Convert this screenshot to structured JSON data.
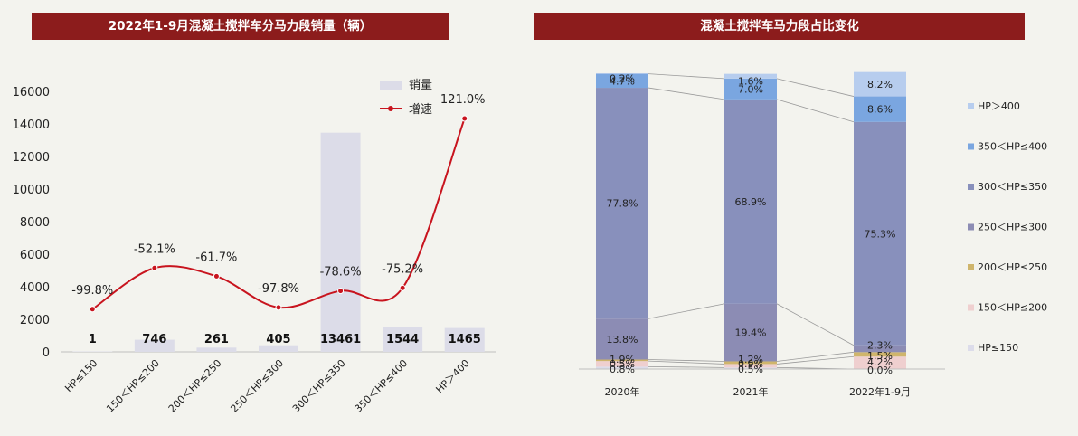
{
  "left_title": "2022年1-9月混凝土搅拌车分马力段销量（辆）",
  "right_title": "混凝土搅拌车马力段占比变化",
  "colors": {
    "banner": "#8c1c1c",
    "bar": "#dcdce8",
    "line": "#c8141e"
  },
  "chart_data": [
    {
      "type": "bar",
      "title": "2022年1-9月混凝土搅拌车分马力段销量（辆）",
      "categories": [
        "HP≤150",
        "150＜HP≤200",
        "200＜HP≤250",
        "250＜HP≤300",
        "300＜HP≤350",
        "350＜HP≤400",
        "HP＞400"
      ],
      "series": [
        {
          "name": "销量",
          "type": "bar",
          "values": [
            1,
            746,
            261,
            405,
            13461,
            1544,
            1465
          ],
          "value_labels": [
            "1",
            "746",
            "261",
            "405",
            "13461",
            "1544",
            "1465"
          ]
        },
        {
          "name": "增速",
          "type": "line",
          "values": [
            -99.8,
            -52.1,
            -61.7,
            -97.8,
            -78.6,
            -75.2,
            121.0
          ],
          "value_labels": [
            "-99.8%",
            "-52.1%",
            "-61.7%",
            "-97.8%",
            "-78.6%",
            "-75.2%",
            "121.0%"
          ]
        }
      ],
      "yticks": [
        "0",
        "2000",
        "4000",
        "6000",
        "8000",
        "10000",
        "12000",
        "14000",
        "16000"
      ],
      "ylim": [
        0,
        16000
      ],
      "legend_position": "top-right"
    },
    {
      "type": "bar",
      "stacked": true,
      "title": "混凝土搅拌车马力段占比变化",
      "categories": [
        "2020年",
        "2021年",
        "2022年1-9月"
      ],
      "series": [
        {
          "name": "HP≤150",
          "values": [
            0.8,
            0.5,
            0.0
          ],
          "labels": [
            "0.8%",
            "0.5%",
            "0.0%"
          ]
        },
        {
          "name": "150＜HP≤200",
          "values": [
            1.9,
            1.2,
            4.2
          ],
          "labels": [
            "1.9%",
            "1.2%",
            "4.2%"
          ]
        },
        {
          "name": "200＜HP≤250",
          "values": [
            0.5,
            0.9,
            1.5
          ],
          "labels": [
            "0.5%",
            "0.9%",
            "1.5%"
          ]
        },
        {
          "name": "250＜HP≤300",
          "values": [
            13.8,
            19.4,
            2.3
          ],
          "labels": [
            "13.8%",
            "19.4%",
            "2.3%"
          ]
        },
        {
          "name": "300＜HP≤350",
          "values": [
            77.8,
            68.9,
            75.3
          ],
          "labels": [
            "77.8%",
            "68.9%",
            "75.3%"
          ]
        },
        {
          "name": "350＜HP≤400",
          "values": [
            4.7,
            7.0,
            8.6
          ],
          "labels": [
            "4.7%",
            "7.0%",
            "8.6%"
          ]
        },
        {
          "name": "HP＞400",
          "values": [
            0.2,
            1.6,
            8.2
          ],
          "labels": [
            "0.2%",
            "1.6%",
            "8.2%"
          ]
        }
      ],
      "legend_order": [
        "HP＞400",
        "350＜HP≤400",
        "300＜HP≤350",
        "250＜HP≤300",
        "200＜HP≤250",
        "150＜HP≤200",
        "HP≤150"
      ],
      "legend_position": "right"
    }
  ]
}
